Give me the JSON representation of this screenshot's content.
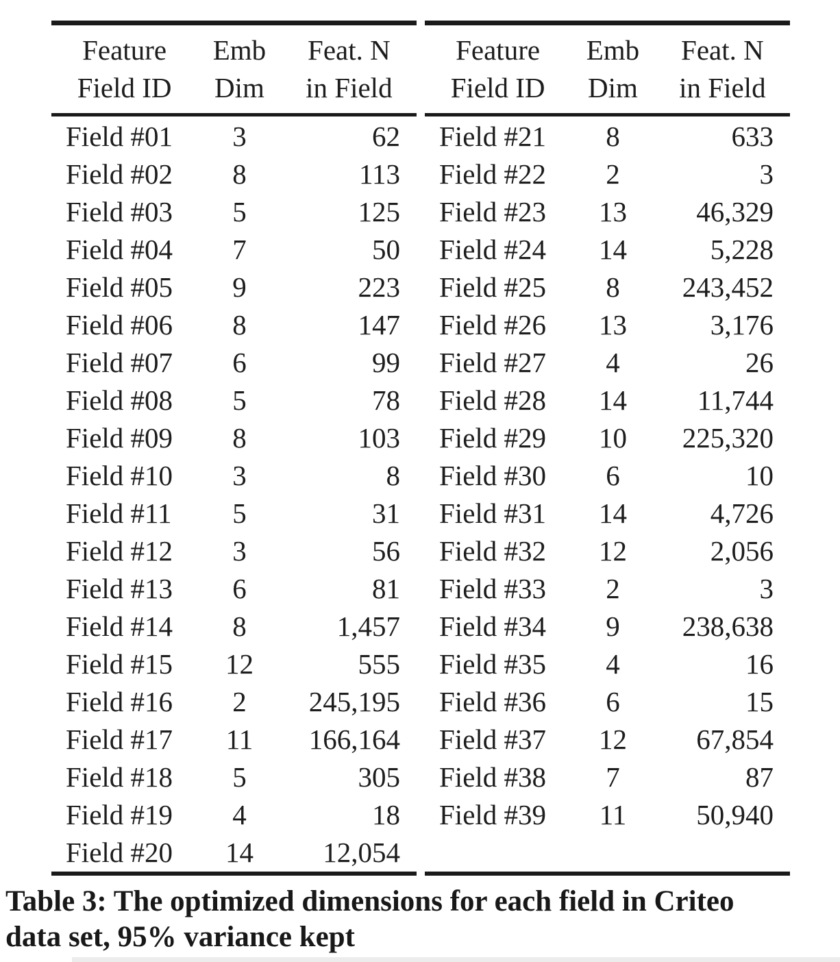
{
  "table": {
    "caption_full": "Table 3: The optimized dimensions for each field in Criteo data set, 95% variance kept",
    "caption_line1": "Table 3: The optimized dimensions for each field in Criteo",
    "caption_line2": "data set, 95% variance kept",
    "headers": {
      "col1": {
        "line1": "Feature",
        "line2": "Field ID"
      },
      "col2": {
        "line1": "Emb",
        "line2": "Dim"
      },
      "col3": {
        "line1": "Feat. N",
        "line2": "in Field"
      }
    },
    "left_rows": [
      {
        "id": "Field #01",
        "dim": "3",
        "n": "62"
      },
      {
        "id": "Field #02",
        "dim": "8",
        "n": "113"
      },
      {
        "id": "Field #03",
        "dim": "5",
        "n": "125"
      },
      {
        "id": "Field #04",
        "dim": "7",
        "n": "50"
      },
      {
        "id": "Field #05",
        "dim": "9",
        "n": "223"
      },
      {
        "id": "Field #06",
        "dim": "8",
        "n": "147"
      },
      {
        "id": "Field #07",
        "dim": "6",
        "n": "99"
      },
      {
        "id": "Field #08",
        "dim": "5",
        "n": "78"
      },
      {
        "id": "Field #09",
        "dim": "8",
        "n": "103"
      },
      {
        "id": "Field #10",
        "dim": "3",
        "n": "8"
      },
      {
        "id": "Field #11",
        "dim": "5",
        "n": "31"
      },
      {
        "id": "Field #12",
        "dim": "3",
        "n": "56"
      },
      {
        "id": "Field #13",
        "dim": "6",
        "n": "81"
      },
      {
        "id": "Field #14",
        "dim": "8",
        "n": "1,457"
      },
      {
        "id": "Field #15",
        "dim": "12",
        "n": "555"
      },
      {
        "id": "Field #16",
        "dim": "2",
        "n": "245,195"
      },
      {
        "id": "Field #17",
        "dim": "11",
        "n": "166,164"
      },
      {
        "id": "Field #18",
        "dim": "5",
        "n": "305"
      },
      {
        "id": "Field #19",
        "dim": "4",
        "n": "18"
      },
      {
        "id": "Field #20",
        "dim": "14",
        "n": "12,054"
      }
    ],
    "right_rows": [
      {
        "id": "Field #21",
        "dim": "8",
        "n": "633"
      },
      {
        "id": "Field #22",
        "dim": "2",
        "n": "3"
      },
      {
        "id": "Field #23",
        "dim": "13",
        "n": "46,329"
      },
      {
        "id": "Field #24",
        "dim": "14",
        "n": "5,228"
      },
      {
        "id": "Field #25",
        "dim": "8",
        "n": "243,452"
      },
      {
        "id": "Field #26",
        "dim": "13",
        "n": "3,176"
      },
      {
        "id": "Field #27",
        "dim": "4",
        "n": "26"
      },
      {
        "id": "Field #28",
        "dim": "14",
        "n": "11,744"
      },
      {
        "id": "Field #29",
        "dim": "10",
        "n": "225,320"
      },
      {
        "id": "Field #30",
        "dim": "6",
        "n": "10"
      },
      {
        "id": "Field #31",
        "dim": "14",
        "n": "4,726"
      },
      {
        "id": "Field #32",
        "dim": "12",
        "n": "2,056"
      },
      {
        "id": "Field #33",
        "dim": "2",
        "n": "3"
      },
      {
        "id": "Field #34",
        "dim": "9",
        "n": "238,638"
      },
      {
        "id": "Field #35",
        "dim": "4",
        "n": "16"
      },
      {
        "id": "Field #36",
        "dim": "6",
        "n": "15"
      },
      {
        "id": "Field #37",
        "dim": "12",
        "n": "67,854"
      },
      {
        "id": "Field #38",
        "dim": "7",
        "n": "87"
      },
      {
        "id": "Field #39",
        "dim": "11",
        "n": "50,940"
      }
    ]
  }
}
